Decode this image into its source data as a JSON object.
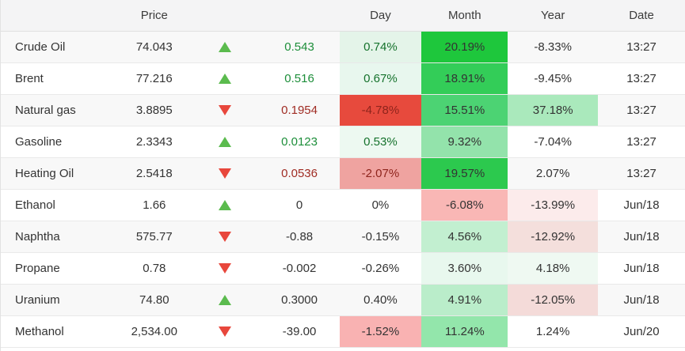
{
  "table": {
    "headers": {
      "name": "",
      "price": "Price",
      "day": "Day",
      "month": "Month",
      "year": "Year",
      "date": "Date"
    },
    "rows": [
      {
        "name": "Crude Oil",
        "price": "74.043",
        "direction": "up",
        "change": {
          "text": "0.543",
          "cls": "chg-pos"
        },
        "day": {
          "text": "0.74%",
          "bg": "#e4f4e9",
          "cls": "pos"
        },
        "month": {
          "text": "20.19%",
          "bg": "#1ec73c",
          "cls": ""
        },
        "year": {
          "text": "-8.33%",
          "bg": "",
          "cls": ""
        },
        "date": "13:27"
      },
      {
        "name": "Brent",
        "price": "77.216",
        "direction": "up",
        "change": {
          "text": "0.516",
          "cls": "chg-pos"
        },
        "day": {
          "text": "0.67%",
          "bg": "#e8f7ee",
          "cls": "pos"
        },
        "month": {
          "text": "18.91%",
          "bg": "#33cd58",
          "cls": ""
        },
        "year": {
          "text": "-9.45%",
          "bg": "",
          "cls": ""
        },
        "date": "13:27"
      },
      {
        "name": "Natural gas",
        "price": "3.8895",
        "direction": "down",
        "change": {
          "text": "0.1954",
          "cls": "chg-neg"
        },
        "day": {
          "text": "-4.78%",
          "bg": "#e74a3d",
          "cls": "neg"
        },
        "month": {
          "text": "15.51%",
          "bg": "#4cd373",
          "cls": ""
        },
        "year": {
          "text": "37.18%",
          "bg": "#aae9bc",
          "cls": ""
        },
        "date": "13:27"
      },
      {
        "name": "Gasoline",
        "price": "2.3343",
        "direction": "up",
        "change": {
          "text": "0.0123",
          "cls": "chg-pos"
        },
        "day": {
          "text": "0.53%",
          "bg": "#edf9f1",
          "cls": "pos"
        },
        "month": {
          "text": "9.32%",
          "bg": "#93e3ab",
          "cls": ""
        },
        "year": {
          "text": "-7.04%",
          "bg": "",
          "cls": ""
        },
        "date": "13:27"
      },
      {
        "name": "Heating Oil",
        "price": "2.5418",
        "direction": "down",
        "change": {
          "text": "0.0536",
          "cls": "chg-neg"
        },
        "day": {
          "text": "-2.07%",
          "bg": "#efa3a0",
          "cls": "neg"
        },
        "month": {
          "text": "19.57%",
          "bg": "#2cc94e",
          "cls": ""
        },
        "year": {
          "text": "2.07%",
          "bg": "",
          "cls": ""
        },
        "date": "13:27"
      },
      {
        "name": "Ethanol",
        "price": "1.66",
        "direction": "up",
        "change": {
          "text": "0",
          "cls": ""
        },
        "day": {
          "text": "0%",
          "bg": "",
          "cls": ""
        },
        "month": {
          "text": "-6.08%",
          "bg": "#f9b7b5",
          "cls": ""
        },
        "year": {
          "text": "-13.99%",
          "bg": "#fcebeb",
          "cls": ""
        },
        "date": "Jun/18"
      },
      {
        "name": "Naphtha",
        "price": "575.77",
        "direction": "down",
        "change": {
          "text": "-0.88",
          "cls": ""
        },
        "day": {
          "text": "-0.15%",
          "bg": "",
          "cls": ""
        },
        "month": {
          "text": "4.56%",
          "bg": "#c2efd0",
          "cls": ""
        },
        "year": {
          "text": "-12.92%",
          "bg": "#f4dfdc",
          "cls": ""
        },
        "date": "Jun/18"
      },
      {
        "name": "Propane",
        "price": "0.78",
        "direction": "down",
        "change": {
          "text": "-0.002",
          "cls": ""
        },
        "day": {
          "text": "-0.26%",
          "bg": "",
          "cls": ""
        },
        "month": {
          "text": "3.60%",
          "bg": "#e8f8ee",
          "cls": ""
        },
        "year": {
          "text": "4.18%",
          "bg": "#eff9f2",
          "cls": ""
        },
        "date": "Jun/18"
      },
      {
        "name": "Uranium",
        "price": "74.80",
        "direction": "up",
        "change": {
          "text": "0.3000",
          "cls": ""
        },
        "day": {
          "text": "0.40%",
          "bg": "",
          "cls": ""
        },
        "month": {
          "text": "4.91%",
          "bg": "#baedca",
          "cls": ""
        },
        "year": {
          "text": "-12.05%",
          "bg": "#f4dbd9",
          "cls": ""
        },
        "date": "Jun/18"
      },
      {
        "name": "Methanol",
        "price": "2,534.00",
        "direction": "down",
        "change": {
          "text": "-39.00",
          "cls": ""
        },
        "day": {
          "text": "-1.52%",
          "bg": "#f9b2b2",
          "cls": ""
        },
        "month": {
          "text": "11.24%",
          "bg": "#93e6ab",
          "cls": ""
        },
        "year": {
          "text": "1.24%",
          "bg": "",
          "cls": ""
        },
        "date": "Jun/20"
      }
    ]
  },
  "colors": {
    "header_bg": "#f4f4f5",
    "row_alt_bg": "#f8f8f8",
    "up_arrow": "#5bbb4e",
    "down_arrow": "#e8473c",
    "pos_text": "#15722c",
    "neg_text": "#8e241c"
  }
}
